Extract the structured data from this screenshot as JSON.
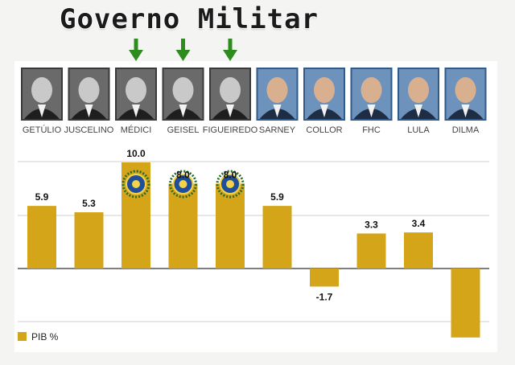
{
  "header": {
    "title": "Governo Militar"
  },
  "chart_data": {
    "type": "bar",
    "categories": [
      "GETÚLIO",
      "JUSCELINO",
      "MÉDICI",
      "GEISEL",
      "FIGUEIREDO",
      "SARNEY",
      "COLLOR",
      "FHC",
      "LULA",
      "DILMA"
    ],
    "series": [
      {
        "name": "PIB %",
        "values": [
          5.9,
          5.3,
          10.0,
          8.0,
          8.0,
          5.9,
          -1.7,
          3.3,
          3.4,
          -6.5
        ],
        "labels": [
          "5.9",
          "5.3",
          "10.0",
          "8.0",
          "8.0",
          "5.9",
          "-1.7",
          "3.3",
          "3.4",
          ""
        ]
      }
    ],
    "military_government": [
      "MÉDICI",
      "GEISEL",
      "FIGUEIREDO"
    ],
    "ylim": [
      -7,
      11
    ],
    "grid": true,
    "legend_position": "bottom-left",
    "colors": {
      "bar": "#d4a518",
      "grid": "#cfcfcf",
      "zero_line": "#333333",
      "arrow": "#2e8b1e"
    }
  }
}
